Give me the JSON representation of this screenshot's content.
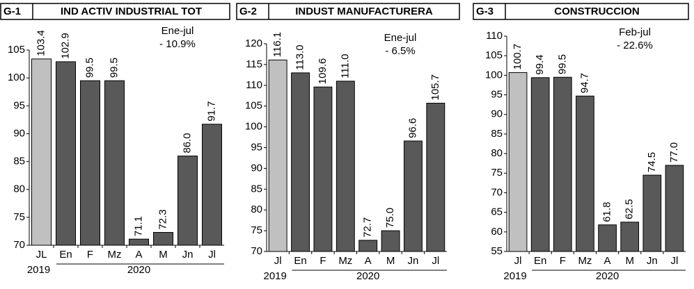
{
  "chart_data": [
    {
      "type": "bar",
      "label": "G-1",
      "title": "IND ACTIV INDUSTRIAL TOT",
      "categories": [
        "JL",
        "En",
        "F",
        "Mz",
        "A",
        "M",
        "Jn",
        "Jl"
      ],
      "values": [
        103.4,
        102.9,
        99.5,
        99.5,
        71.1,
        72.3,
        86.0,
        91.7
      ],
      "value_labels": [
        "103.4",
        "102.9",
        "99.5",
        "99.5",
        "71.1",
        "72.3",
        "86.0",
        "91.7"
      ],
      "colors": [
        "#c0c0c0",
        "#595959",
        "#595959",
        "#595959",
        "#595959",
        "#595959",
        "#595959",
        "#595959"
      ],
      "ylim": [
        70,
        105
      ],
      "yticks": [
        70,
        75,
        80,
        85,
        90,
        95,
        100,
        105
      ],
      "annotation": [
        "Ene-jul",
        "- 10.9%"
      ],
      "year_labels": [
        "2019",
        "2020"
      ]
    },
    {
      "type": "bar",
      "label": "G-2",
      "title": "INDUST MANUFACTURERA",
      "categories": [
        "Jl",
        "En",
        "F",
        "Mz",
        "A",
        "M",
        "Jn",
        "Jl"
      ],
      "values": [
        116.1,
        113.0,
        109.6,
        111.0,
        72.7,
        75.0,
        96.6,
        105.7
      ],
      "value_labels": [
        "116.1",
        "113.0",
        "109.6",
        "111.0",
        "72.7",
        "75.0",
        "96.6",
        "105.7"
      ],
      "colors": [
        "#c0c0c0",
        "#595959",
        "#595959",
        "#595959",
        "#595959",
        "#595959",
        "#595959",
        "#595959"
      ],
      "ylim": [
        70,
        120
      ],
      "yticks": [
        70,
        75,
        80,
        85,
        90,
        95,
        100,
        105,
        110,
        115,
        120
      ],
      "annotation": [
        "Ene-jul",
        "- 6.5%"
      ],
      "year_labels": [
        "2019",
        "2020"
      ]
    },
    {
      "type": "bar",
      "label": "G-3",
      "title": "CONSTRUCCION",
      "categories": [
        "Jl",
        "En",
        "F",
        "Mz",
        "A",
        "M",
        "Jn",
        "Jl"
      ],
      "values": [
        100.7,
        99.4,
        99.5,
        94.7,
        61.8,
        62.5,
        74.5,
        77.0
      ],
      "value_labels": [
        "100.7",
        "99.4",
        "99.5",
        "94.7",
        "61.8",
        "62.5",
        "74.5",
        "77.0"
      ],
      "colors": [
        "#c0c0c0",
        "#595959",
        "#595959",
        "#595959",
        "#595959",
        "#595959",
        "#595959",
        "#595959"
      ],
      "ylim": [
        55,
        110
      ],
      "yticks": [
        55,
        60,
        65,
        70,
        75,
        80,
        85,
        90,
        95,
        100,
        105,
        110
      ],
      "annotation": [
        "Feb-jul",
        "- 22.6%"
      ],
      "year_labels": [
        "2019",
        "2020"
      ]
    }
  ]
}
